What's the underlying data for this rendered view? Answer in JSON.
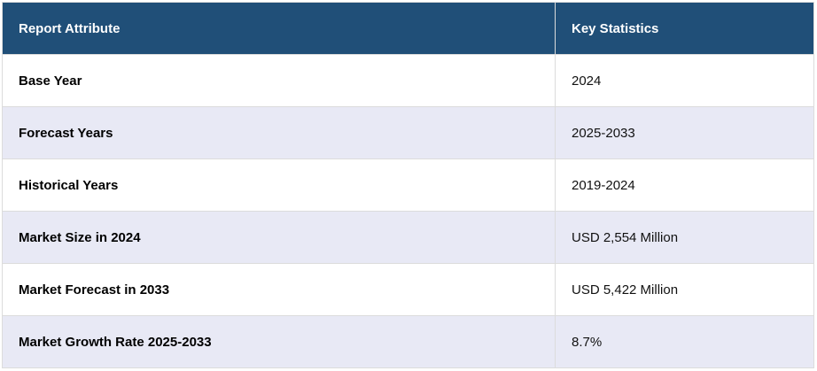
{
  "table": {
    "headers": [
      "Report Attribute",
      "Key Statistics"
    ],
    "rows": [
      {
        "attribute": "Base Year",
        "value": "2024"
      },
      {
        "attribute": "Forecast Years",
        "value": "2025-2033"
      },
      {
        "attribute": "Historical Years",
        "value": "2019-2024"
      },
      {
        "attribute": "Market Size in 2024",
        "value": "USD 2,554 Million"
      },
      {
        "attribute": "Market Forecast in 2033",
        "value": "USD 5,422 Million"
      },
      {
        "attribute": "Market Growth Rate 2025-2033",
        "value": "8.7%"
      }
    ]
  },
  "colors": {
    "header_bg": "#204f78",
    "alt_row_bg": "#e8e9f5"
  }
}
